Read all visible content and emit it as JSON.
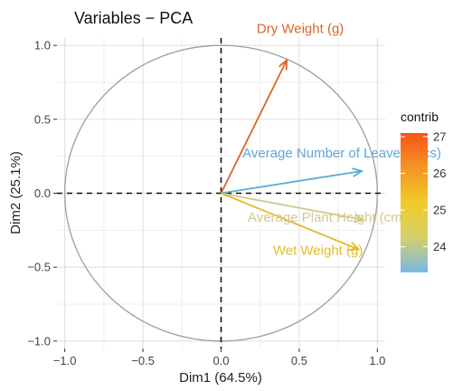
{
  "chart_data": {
    "type": "scatter",
    "subtype": "pca-variable-correlation-circle",
    "title": "Variables − PCA",
    "xlabel": "Dim1 (64.5%)",
    "ylabel": "Dim2 (25.1%)",
    "xlim": [
      -1.05,
      1.05
    ],
    "ylim": [
      -1.05,
      1.05
    ],
    "xticks": [
      -1.0,
      -0.5,
      0.0,
      0.5,
      1.0
    ],
    "yticks": [
      -1.0,
      -0.5,
      0.0,
      0.5,
      1.0
    ],
    "xtick_labels": [
      "−1.0",
      "−0.5",
      "0.0",
      "0.5",
      "1.0"
    ],
    "ytick_labels": [
      "−1.0",
      "−0.5",
      "0.0",
      "0.5",
      "1.0"
    ],
    "grid": true,
    "unit_circle": true,
    "variables": [
      {
        "name": "Dry Weight (g)",
        "x": 0.42,
        "y": 0.9,
        "contrib": 27.0,
        "color": "#D9652A"
      },
      {
        "name": "Average Number of Leaves (pcs)",
        "x": 0.9,
        "y": 0.15,
        "contrib": 23.4,
        "color": "#5BAAD8"
      },
      {
        "name": "Average Plant Height (cm)",
        "x": 0.91,
        "y": -0.18,
        "contrib": 24.3,
        "color": "#D2C98C"
      },
      {
        "name": "Wet Weight (g)",
        "x": 0.88,
        "y": -0.38,
        "contrib": 25.1,
        "color": "#E5BB2A"
      }
    ],
    "legend": {
      "title": "contrib",
      "position": "right",
      "min": 23.3,
      "max": 27.1,
      "ticks": [
        24,
        25,
        26,
        27
      ],
      "tick_labels": [
        "24",
        "25",
        "26",
        "27"
      ],
      "colors": [
        "#FA5318",
        "#F49524",
        "#EFCB2A",
        "#D3D06A",
        "#79B7E8"
      ]
    }
  }
}
